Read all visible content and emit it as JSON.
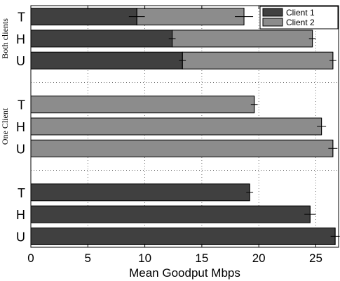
{
  "chart_data": {
    "type": "bar",
    "orientation": "horizontal",
    "stacked": true,
    "xlabel": "Mean Goodput Mbps",
    "xlim": [
      0,
      27
    ],
    "xticks": [
      0,
      5,
      10,
      15,
      20,
      25
    ],
    "grid": true,
    "legend": {
      "position": "top-right",
      "entries": [
        {
          "name": "Client 1",
          "color": "#404040"
        },
        {
          "name": "Client 2",
          "color": "#8c8c8c"
        }
      ]
    },
    "groups": [
      {
        "label": "Both clients",
        "bars": [
          {
            "label": "T",
            "client1": 9.3,
            "client1_err": 0.7,
            "client2": 9.4,
            "total_err": 0.8
          },
          {
            "label": "H",
            "client1": 12.4,
            "client1_err": 0.3,
            "client2": 12.3,
            "total_err": 0.3
          },
          {
            "label": "U",
            "client1": 13.3,
            "client1_err": 0.3,
            "client2": 13.2,
            "total_err": 0.3
          }
        ]
      },
      {
        "label": "One Client",
        "bars": [
          {
            "label": "T",
            "client2": 19.6,
            "err": 0.3
          },
          {
            "label": "H",
            "client2": 25.5,
            "err": 0.4
          },
          {
            "label": "U",
            "client2": 26.5,
            "err": 0.4
          }
        ]
      },
      {
        "label": "",
        "bars": [
          {
            "label": "T",
            "client1": 19.2,
            "err": 0.3
          },
          {
            "label": "H",
            "client1": 24.5,
            "err": 0.5
          },
          {
            "label": "U",
            "client1": 26.7,
            "err": 0.4
          }
        ]
      }
    ]
  }
}
